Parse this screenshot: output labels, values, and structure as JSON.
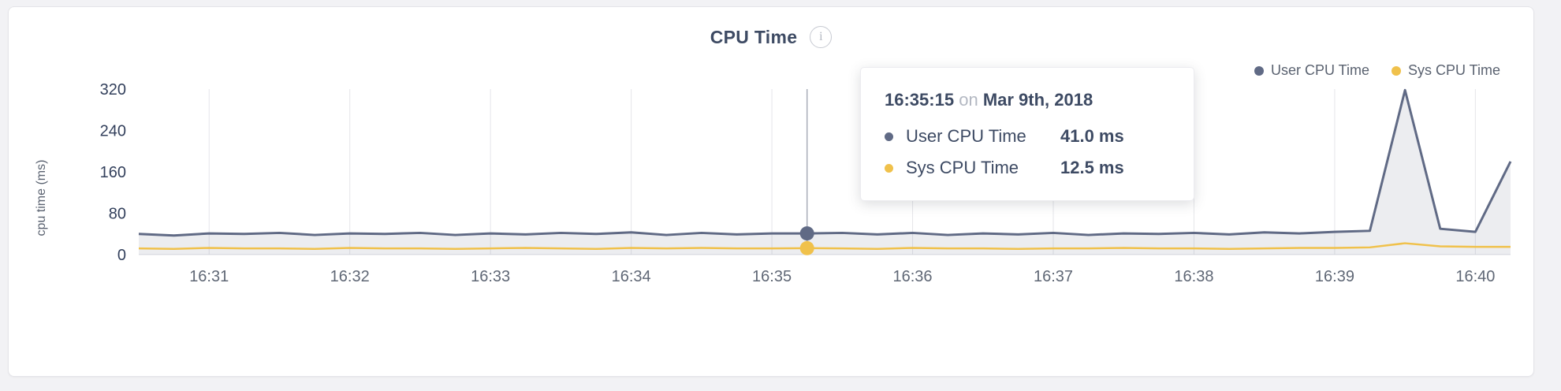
{
  "header": {
    "title": "CPU Time",
    "info_glyph": "i"
  },
  "legend": [
    {
      "label": "User CPU Time",
      "color": "#606a85"
    },
    {
      "label": "Sys CPU Time",
      "color": "#f0c14b"
    }
  ],
  "tooltip": {
    "time": "16:35:15",
    "on_word": "on",
    "date": "Mar 9th, 2018",
    "rows": [
      {
        "label": "User CPU Time",
        "value": "41.0 ms",
        "color": "#606a85"
      },
      {
        "label": "Sys CPU Time",
        "value": "12.5 ms",
        "color": "#f0c14b"
      }
    ]
  },
  "chart_data": {
    "type": "area",
    "title": "CPU Time",
    "xlabel": "",
    "ylabel": "cpu time (ms)",
    "ylim": [
      0,
      320
    ],
    "yticks": [
      0,
      80,
      160,
      240,
      320
    ],
    "xtick_labels": [
      "16:31",
      "16:32",
      "16:33",
      "16:34",
      "16:35",
      "16:36",
      "16:37",
      "16:38",
      "16:39",
      "16:40"
    ],
    "xtick_seconds": [
      60,
      120,
      180,
      240,
      300,
      360,
      420,
      480,
      540,
      600
    ],
    "x_domain_seconds": [
      30,
      615
    ],
    "grid": "vertical-only",
    "legend_position": "top-right",
    "x_seconds": [
      30,
      45,
      60,
      75,
      90,
      105,
      120,
      135,
      150,
      165,
      180,
      195,
      210,
      225,
      240,
      255,
      270,
      285,
      300,
      315,
      330,
      345,
      360,
      375,
      390,
      405,
      420,
      435,
      450,
      465,
      480,
      495,
      510,
      525,
      540,
      555,
      570,
      585,
      600,
      615
    ],
    "series": [
      {
        "name": "User CPU Time",
        "color": "#606a85",
        "fill": "rgba(96,106,133,0.12)",
        "values": [
          40,
          37,
          41,
          40,
          42,
          38,
          41,
          40,
          42,
          38,
          41,
          39,
          42,
          40,
          43,
          38,
          42,
          39,
          41,
          41,
          42,
          39,
          42,
          38,
          41,
          39,
          42,
          38,
          41,
          40,
          42,
          39,
          43,
          41,
          44,
          46,
          318,
          50,
          44,
          180
        ]
      },
      {
        "name": "Sys CPU Time",
        "color": "#f0c14b",
        "fill": "none",
        "values": [
          12,
          11,
          13,
          12,
          12,
          11,
          13,
          12,
          12,
          11,
          12,
          13,
          12,
          11,
          13,
          12,
          13,
          12,
          12,
          12.5,
          12,
          11,
          13,
          12,
          12,
          11,
          12,
          12,
          13,
          12,
          12,
          11,
          12,
          13,
          13,
          14,
          22,
          16,
          15,
          15
        ]
      }
    ],
    "crosshair": {
      "t": 315,
      "time_label": "16:35:15",
      "date_label": "Mar 9th, 2018",
      "values": [
        41.0,
        12.5
      ]
    }
  }
}
